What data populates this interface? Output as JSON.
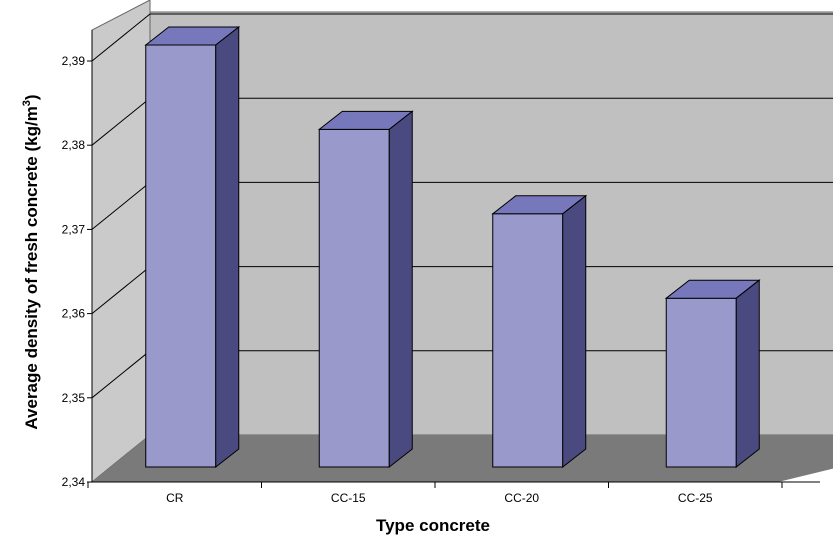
{
  "chart_data": {
    "type": "bar",
    "style": "3d-column",
    "categories": [
      "CR",
      "CC-15",
      "CC-20",
      "CC-25"
    ],
    "values": [
      2.39,
      2.38,
      2.37,
      2.36
    ],
    "xlabel": "Type concrete",
    "ylabel": "Average density of fresh concrete (kg/m",
    "ylabel_superscript": "3",
    "ylabel_suffix": ")",
    "ylim": [
      2.34,
      2.39
    ],
    "yticks": [
      2.34,
      2.35,
      2.36,
      2.37,
      2.38,
      2.39
    ],
    "ytick_labels": [
      "2,34",
      "2,35",
      "2,36",
      "2,37",
      "2,38",
      "2,39"
    ],
    "grid": true,
    "legend": "none",
    "colors": {
      "bar_front": "#9999cc",
      "bar_top": "#7777bb",
      "bar_side": "#4a4a80",
      "back_wall": "#c0c0c0",
      "side_wall": "#cacaca",
      "floor": "#7a7a7a",
      "gridline": "#000000"
    }
  }
}
